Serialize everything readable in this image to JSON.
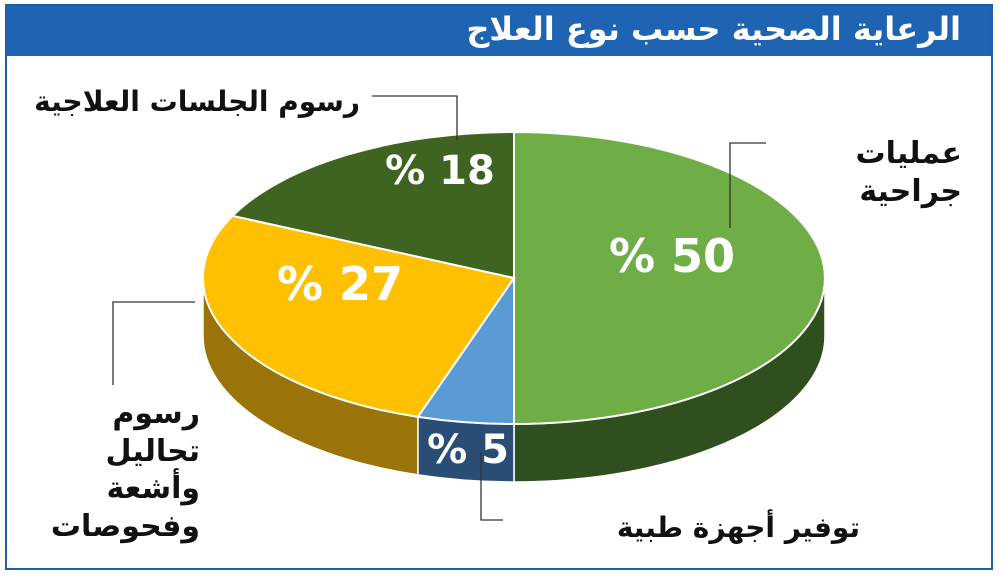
{
  "title": "الرعاية الصحية حسب نوع العلاج",
  "chart_data": {
    "type": "pie",
    "title": "الرعاية الصحية حسب نوع العلاج",
    "slices": [
      {
        "label": "عمليات جراحية",
        "value": 50,
        "value_label": "% 50",
        "color": "#6fad47",
        "dark": "#2f4f1f"
      },
      {
        "label": "توفير أجهزة طبية",
        "value": 5,
        "value_label": "% 5",
        "color": "#5b9bd5",
        "dark": "#2a4d75"
      },
      {
        "label": "رسوم تحاليل وأشعة وفحوصات",
        "value": 27,
        "value_label": "% 27",
        "color": "#ffc000",
        "dark": "#9a7408"
      },
      {
        "label": "رسوم الجلسات العلاجية",
        "value": 18,
        "value_label": "% 18",
        "color": "#3f6320",
        "dark": "#27401a"
      }
    ]
  },
  "labels": {
    "surgeries_line1": "عمليات",
    "surgeries_line2": "جراحية",
    "equipment": "توفير أجهزة طبية",
    "tests_line1": "رسوم تحاليل",
    "tests_line2": "وأشعة",
    "tests_line3": "وفحوصات",
    "sessions": "رسوم الجلسات العلاجية"
  },
  "colors": {
    "title_bar": "#1f64b3",
    "frame": "#1f5ea8"
  }
}
